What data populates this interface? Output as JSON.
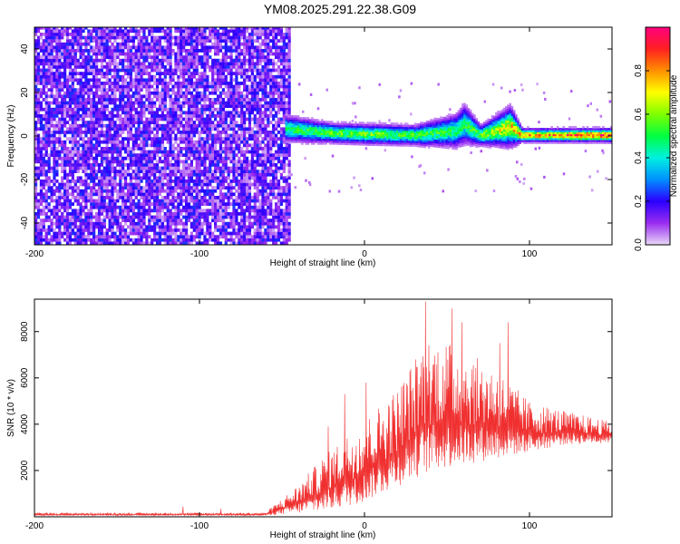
{
  "figure": {
    "title": "YM08.2025.291.22.38.G09"
  },
  "chart_data": [
    {
      "type": "heatmap",
      "xlabel": "Height of straight line (km)",
      "ylabel": "Frequency (Hz)",
      "xlim": [
        -200,
        150
      ],
      "ylim": [
        -50,
        50
      ],
      "xticks": [
        -200,
        -100,
        0,
        100
      ],
      "yticks": [
        -40,
        -20,
        0,
        20,
        40
      ],
      "colorbar": {
        "label": "Normalized spectral amplitude",
        "range": [
          0,
          1
        ],
        "ticks": [
          0.0,
          0.2,
          0.4,
          0.6,
          0.8
        ],
        "colors": [
          "#e8d9f7",
          "#9a2cf0",
          "#2a00ff",
          "#0090ff",
          "#00f0e0",
          "#00ff40",
          "#80ff00",
          "#ffff00",
          "#ff9000",
          "#ff2020",
          "#ff0080"
        ]
      },
      "noise_region_x": [
        -200,
        -48
      ],
      "signal_band": [
        {
          "x": -48,
          "center": 3,
          "halfwidth": 4
        },
        {
          "x": -20,
          "center": 1,
          "halfwidth": 3
        },
        {
          "x": 0,
          "center": 0.5,
          "halfwidth": 3
        },
        {
          "x": 30,
          "center": 0,
          "halfwidth": 3
        },
        {
          "x": 55,
          "center": 2,
          "halfwidth": 5
        },
        {
          "x": 60,
          "center": 5,
          "halfwidth": 6
        },
        {
          "x": 70,
          "center": 0,
          "halfwidth": 3
        },
        {
          "x": 88,
          "center": 4,
          "halfwidth": 6
        },
        {
          "x": 95,
          "center": 0,
          "halfwidth": 2
        },
        {
          "x": 150,
          "center": 0,
          "halfwidth": 2
        }
      ],
      "amplitude_along_band": [
        {
          "x": -48,
          "value": 0.5
        },
        {
          "x": 0,
          "value": 0.6
        },
        {
          "x": 60,
          "value": 0.5
        },
        {
          "x": 95,
          "value": 0.8
        },
        {
          "x": 150,
          "value": 0.95
        }
      ]
    },
    {
      "type": "line",
      "xlabel": "Height of straight line (km)",
      "ylabel": "SNR (10 * v/v)",
      "xlim": [
        -200,
        150
      ],
      "ylim": [
        0,
        9400
      ],
      "xticks": [
        -200,
        -100,
        0,
        100
      ],
      "yticks": [
        2000,
        4000,
        6000,
        8000
      ],
      "color": "#f03030",
      "envelope": [
        {
          "x": -200,
          "base": 50,
          "top": 180
        },
        {
          "x": -60,
          "base": 50,
          "top": 180
        },
        {
          "x": -55,
          "base": 80,
          "top": 500
        },
        {
          "x": -40,
          "base": 150,
          "top": 1400
        },
        {
          "x": -25,
          "base": 250,
          "top": 2600
        },
        {
          "x": -10,
          "base": 450,
          "top": 3600
        },
        {
          "x": 0,
          "base": 650,
          "top": 4200
        },
        {
          "x": 20,
          "base": 1300,
          "top": 5600
        },
        {
          "x": 38,
          "base": 1900,
          "top": 7800
        },
        {
          "x": 50,
          "base": 2100,
          "top": 7600
        },
        {
          "x": 65,
          "base": 2300,
          "top": 7000
        },
        {
          "x": 80,
          "base": 2500,
          "top": 6400
        },
        {
          "x": 100,
          "base": 2800,
          "top": 5000
        },
        {
          "x": 120,
          "base": 3100,
          "top": 4600
        },
        {
          "x": 150,
          "base": 3200,
          "top": 4100
        }
      ],
      "peaks": [
        {
          "x": -110,
          "y": 450
        },
        {
          "x": -87,
          "y": 350
        },
        {
          "x": -22,
          "y": 3900
        },
        {
          "x": -12,
          "y": 5300
        },
        {
          "x": 1,
          "y": 5800
        },
        {
          "x": 37,
          "y": 9300
        },
        {
          "x": 53,
          "y": 9000
        },
        {
          "x": 59,
          "y": 8400
        },
        {
          "x": 82,
          "y": 7500
        },
        {
          "x": 87,
          "y": 8400
        }
      ]
    }
  ]
}
